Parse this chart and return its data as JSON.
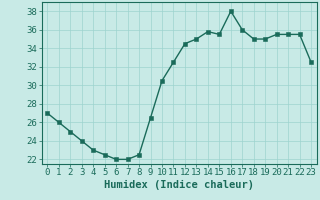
{
  "x": [
    0,
    1,
    2,
    3,
    4,
    5,
    6,
    7,
    8,
    9,
    10,
    11,
    12,
    13,
    14,
    15,
    16,
    17,
    18,
    19,
    20,
    21,
    22,
    23
  ],
  "y": [
    27,
    26,
    25,
    24,
    23,
    22.5,
    22,
    22,
    22.5,
    26.5,
    30.5,
    32.5,
    34.5,
    35,
    35.8,
    35.5,
    38,
    36,
    35,
    35,
    35.5,
    35.5,
    35.5,
    32.5
  ],
  "xlabel": "Humidex (Indice chaleur)",
  "line_color": "#1a6b5a",
  "marker_color": "#1a6b5a",
  "bg_color": "#c8eae6",
  "grid_color": "#9dd4ce",
  "axis_color": "#1a6b5a",
  "tick_color": "#1a6b5a",
  "ylim": [
    21.5,
    39
  ],
  "xlim": [
    -0.5,
    23.5
  ],
  "yticks": [
    22,
    24,
    26,
    28,
    30,
    32,
    34,
    36,
    38
  ],
  "xticks": [
    0,
    1,
    2,
    3,
    4,
    5,
    6,
    7,
    8,
    9,
    10,
    11,
    12,
    13,
    14,
    15,
    16,
    17,
    18,
    19,
    20,
    21,
    22,
    23
  ],
  "xtick_labels": [
    "0",
    "1",
    "2",
    "3",
    "4",
    "5",
    "6",
    "7",
    "8",
    "9",
    "10",
    "11",
    "12",
    "13",
    "14",
    "15",
    "16",
    "17",
    "18",
    "19",
    "20",
    "21",
    "22",
    "23"
  ],
  "xlabel_fontsize": 7.5,
  "tick_fontsize": 6.5,
  "line_width": 1.0,
  "marker_size": 2.5
}
